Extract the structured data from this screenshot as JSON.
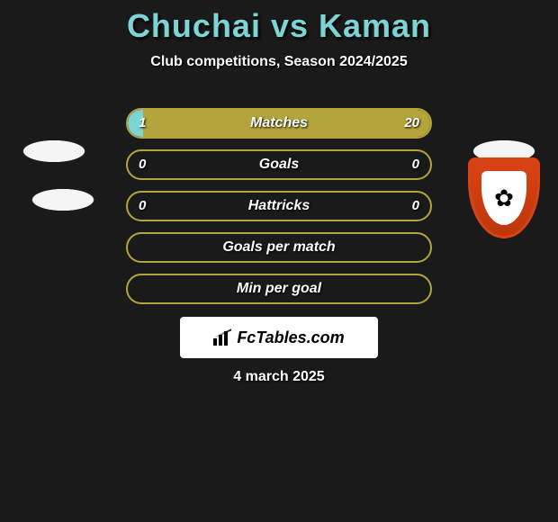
{
  "title": "Chuchai vs Kaman",
  "subtitle": "Club competitions, Season 2024/2025",
  "date": "4 march 2025",
  "brand": "FcTables.com",
  "left_player_color": "#7dd4d4",
  "right_player_color": "#b4a43c",
  "background_color": "#1a1a1a",
  "badge": {
    "outer_color": "#d84315",
    "inner_color": "#ffffff",
    "emblem": "✿"
  },
  "bars": [
    {
      "label": "Matches",
      "left": "1",
      "right": "20",
      "left_pct": 5,
      "right_pct": 95,
      "has_values": true
    },
    {
      "label": "Goals",
      "left": "0",
      "right": "0",
      "left_pct": 0,
      "right_pct": 0,
      "has_values": true
    },
    {
      "label": "Hattricks",
      "left": "0",
      "right": "0",
      "left_pct": 0,
      "right_pct": 0,
      "has_values": true
    },
    {
      "label": "Goals per match",
      "left": "",
      "right": "",
      "left_pct": 0,
      "right_pct": 0,
      "has_values": false
    },
    {
      "label": "Min per goal",
      "left": "",
      "right": "",
      "left_pct": 0,
      "right_pct": 0,
      "has_values": false
    }
  ]
}
